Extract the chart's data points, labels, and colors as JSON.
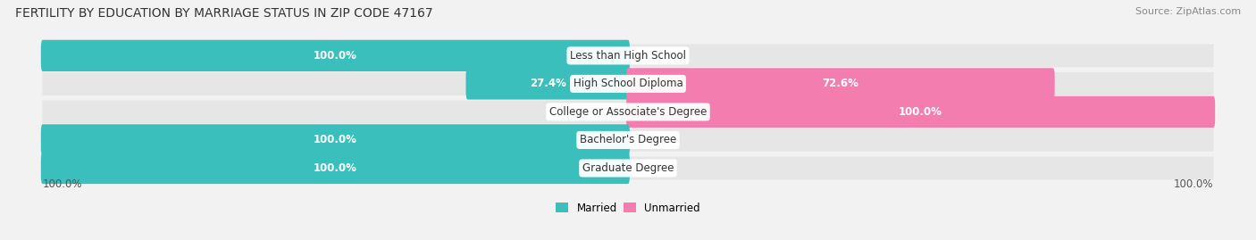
{
  "title": "FERTILITY BY EDUCATION BY MARRIAGE STATUS IN ZIP CODE 47167",
  "source": "Source: ZipAtlas.com",
  "categories": [
    "Less than High School",
    "High School Diploma",
    "College or Associate's Degree",
    "Bachelor's Degree",
    "Graduate Degree"
  ],
  "married": [
    100.0,
    27.4,
    0.0,
    100.0,
    100.0
  ],
  "unmarried": [
    0.0,
    72.6,
    100.0,
    0.0,
    0.0
  ],
  "married_color": "#3bbfbc",
  "unmarried_color": "#f47db0",
  "bg_color": "#f2f2f2",
  "row_bg_color": "#e6e6e6",
  "title_fontsize": 10,
  "label_fontsize": 8.5,
  "tick_fontsize": 8.5,
  "source_fontsize": 8,
  "x_left_label": "100.0%",
  "x_right_label": "100.0%"
}
